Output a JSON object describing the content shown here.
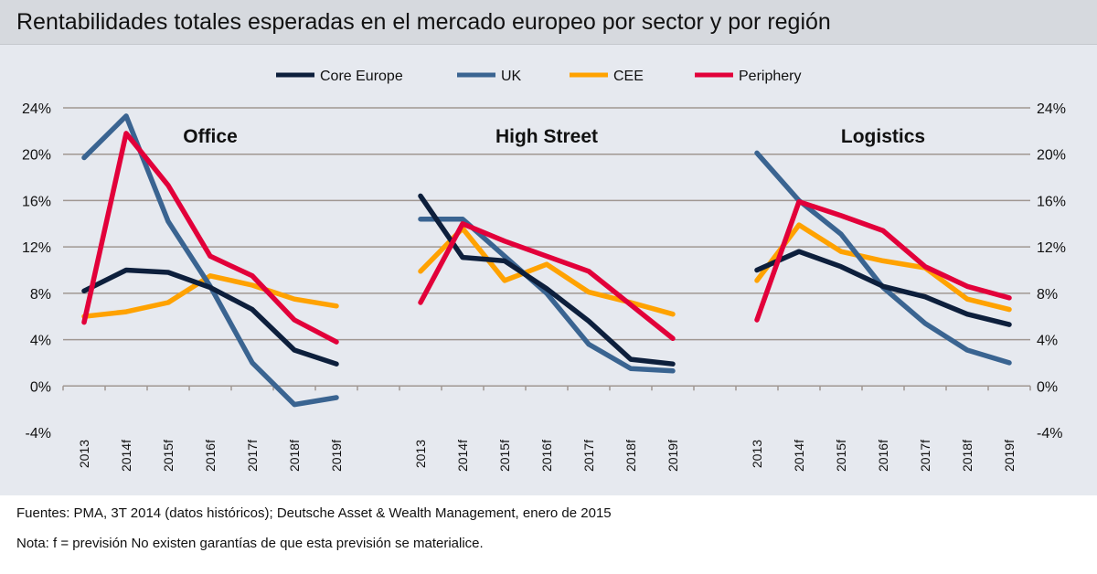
{
  "title": "Rentabilidades totales esperadas en el mercado europeo por sector y por región",
  "footer": {
    "source": "Fuentes: PMA, 3T 2014 (datos históricos); Deutsche Asset & Wealth Management, enero de 2015",
    "note": "Nota: f = previsión No existen garantías de que esta previsión se materialice."
  },
  "chart_data": {
    "type": "line",
    "ylim": [
      -4,
      24
    ],
    "yticks": [
      "-4%",
      "0%",
      "4%",
      "8%",
      "12%",
      "16%",
      "20%",
      "24%"
    ],
    "ytick_values": [
      -4,
      0,
      4,
      8,
      12,
      16,
      20,
      24
    ],
    "grid": true,
    "legend": "top-center",
    "categories": [
      "2013",
      "2014f",
      "2015f",
      "2016f",
      "2017f",
      "2018f",
      "2019f"
    ],
    "series_colors": {
      "Core Europe": "#0d1f3c",
      "UK": "#3a6491",
      "CEE": "#ffa200",
      "Periphery": "#e2003a"
    },
    "legend_entries": [
      "Core Europe",
      "UK",
      "CEE",
      "Periphery"
    ],
    "panels": [
      {
        "title": "Office",
        "series": [
          {
            "name": "Core Europe",
            "values": [
              8.2,
              10.0,
              9.8,
              8.5,
              6.6,
              3.1,
              1.9
            ]
          },
          {
            "name": "UK",
            "values": [
              19.7,
              23.3,
              14.2,
              8.6,
              2.0,
              -1.6,
              -1.0
            ]
          },
          {
            "name": "CEE",
            "values": [
              6.0,
              6.4,
              7.2,
              9.5,
              8.7,
              7.5,
              6.9
            ]
          },
          {
            "name": "Periphery",
            "values": [
              5.5,
              21.8,
              17.3,
              11.2,
              9.5,
              5.7,
              3.8
            ]
          }
        ]
      },
      {
        "title": "High Street",
        "series": [
          {
            "name": "Core Europe",
            "values": [
              16.4,
              11.1,
              10.8,
              8.4,
              5.6,
              2.3,
              1.9
            ]
          },
          {
            "name": "UK",
            "values": [
              14.4,
              14.4,
              11.2,
              8.0,
              3.6,
              1.5,
              1.3
            ]
          },
          {
            "name": "CEE",
            "values": [
              9.9,
              13.6,
              9.1,
              10.5,
              8.1,
              7.2,
              6.2
            ]
          },
          {
            "name": "Periphery",
            "values": [
              7.2,
              14.0,
              12.5,
              11.2,
              9.9,
              7.0,
              4.1
            ]
          }
        ]
      },
      {
        "title": "Logistics",
        "series": [
          {
            "name": "Core Europe",
            "values": [
              10.0,
              11.6,
              10.3,
              8.6,
              7.7,
              6.2,
              5.3
            ]
          },
          {
            "name": "UK",
            "values": [
              20.1,
              16.0,
              13.1,
              8.5,
              5.4,
              3.1,
              2.0
            ]
          },
          {
            "name": "CEE",
            "values": [
              9.1,
              13.9,
              11.6,
              10.8,
              10.2,
              7.5,
              6.6
            ]
          },
          {
            "name": "Periphery",
            "values": [
              5.7,
              15.9,
              14.7,
              13.4,
              10.3,
              8.6,
              7.6
            ]
          }
        ]
      }
    ]
  }
}
